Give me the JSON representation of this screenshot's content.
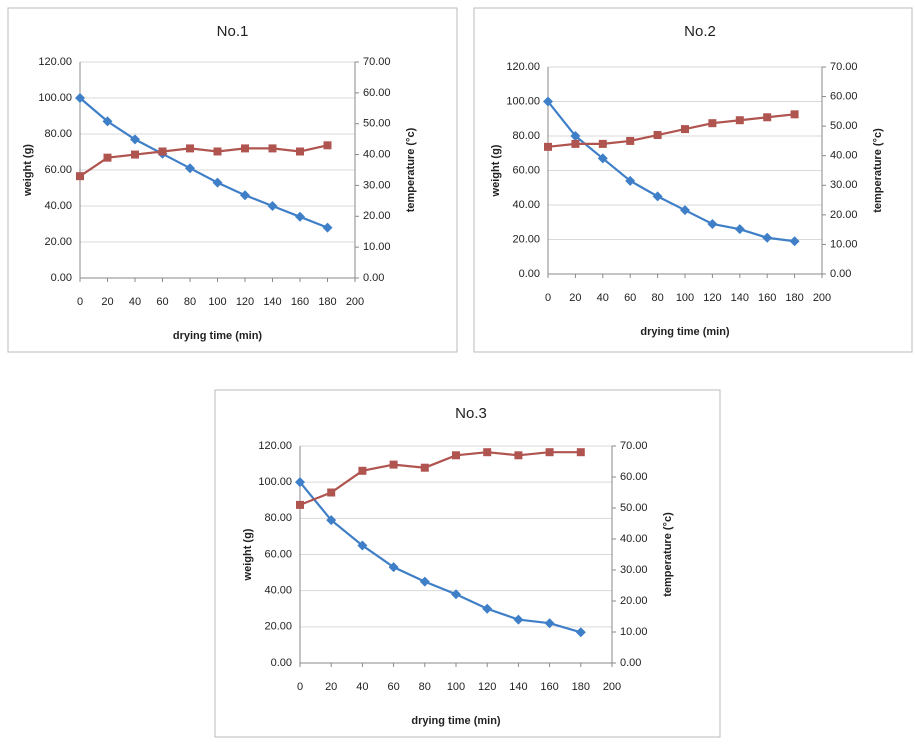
{
  "chart_data": [
    {
      "type": "line",
      "title": "No.1",
      "xlabel": "drying time (min)",
      "ylabel": "weight (g)",
      "y2label": "temperature (°c)",
      "x": [
        0,
        20,
        40,
        60,
        80,
        100,
        120,
        140,
        160,
        180
      ],
      "series": [
        {
          "color": "#3f7fc8",
          "marker": "diamond",
          "values": [
            100,
            87,
            77,
            69,
            61,
            53,
            46,
            40,
            34,
            28
          ]
        },
        {
          "color": "#b05450",
          "marker": "square",
          "axis": "y2",
          "values": [
            33,
            39,
            40,
            41,
            42,
            41,
            42,
            42,
            41,
            43
          ]
        }
      ],
      "xlim": [
        0,
        200
      ],
      "xticks": [
        0,
        20,
        40,
        60,
        80,
        100,
        120,
        140,
        160,
        180,
        200
      ],
      "ylim": [
        0,
        120
      ],
      "yticks": [
        {
          "value": 0,
          "label": "0.00"
        },
        {
          "value": 20,
          "label": "20.00"
        },
        {
          "value": 40,
          "label": "40.00"
        },
        {
          "value": 60,
          "label": "60.00"
        },
        {
          "value": 80,
          "label": "80.00"
        },
        {
          "value": 100,
          "label": "100.00"
        },
        {
          "value": 120,
          "label": "120.00"
        }
      ],
      "y2lim": [
        0,
        70
      ],
      "y2ticks": [
        {
          "value": 0,
          "label": "0.00"
        },
        {
          "value": 10,
          "label": "10.00"
        },
        {
          "value": 20,
          "label": "20.00"
        },
        {
          "value": 30,
          "label": "30.00"
        },
        {
          "value": 40,
          "label": "40.00"
        },
        {
          "value": 50,
          "label": "50.00"
        },
        {
          "value": 60,
          "label": "60.00"
        },
        {
          "value": 70,
          "label": "70.00"
        }
      ],
      "grid": true
    },
    {
      "type": "line",
      "title": "No.2",
      "xlabel": "drying time (min)",
      "ylabel": "weight (g)",
      "y2label": "temperature (°c)",
      "x": [
        0,
        20,
        40,
        60,
        80,
        100,
        120,
        140,
        160,
        180
      ],
      "series": [
        {
          "color": "#3f7fc8",
          "marker": "diamond",
          "values": [
            100,
            80,
            67,
            54,
            45,
            37,
            29,
            26,
            21,
            19
          ]
        },
        {
          "color": "#b05450",
          "marker": "square",
          "axis": "y2",
          "values": [
            43,
            44,
            44,
            45,
            47,
            49,
            51,
            52,
            53,
            54
          ]
        }
      ],
      "xlim": [
        0,
        200
      ],
      "xticks": [
        0,
        20,
        40,
        60,
        80,
        100,
        120,
        140,
        160,
        180,
        200
      ],
      "ylim": [
        0,
        120
      ],
      "yticks": [
        {
          "value": 0,
          "label": "0.00"
        },
        {
          "value": 20,
          "label": "20.00"
        },
        {
          "value": 40,
          "label": "40.00"
        },
        {
          "value": 60,
          "label": "60.00"
        },
        {
          "value": 80,
          "label": "80.00"
        },
        {
          "value": 100,
          "label": "100.00"
        },
        {
          "value": 120,
          "label": "120.00"
        }
      ],
      "y2lim": [
        0,
        70
      ],
      "y2ticks": [
        {
          "value": 0,
          "label": "0.00"
        },
        {
          "value": 10,
          "label": "10.00"
        },
        {
          "value": 20,
          "label": "20.00"
        },
        {
          "value": 30,
          "label": "30.00"
        },
        {
          "value": 40,
          "label": "40.00"
        },
        {
          "value": 50,
          "label": "50.00"
        },
        {
          "value": 60,
          "label": "60.00"
        },
        {
          "value": 70,
          "label": "70.00"
        }
      ],
      "grid": true
    },
    {
      "type": "line",
      "title": "No.3",
      "xlabel": "drying time (min)",
      "ylabel": "weight (g)",
      "y2label": "temperature (°c)",
      "x": [
        0,
        20,
        40,
        60,
        80,
        100,
        120,
        140,
        160,
        180
      ],
      "series": [
        {
          "color": "#3f7fc8",
          "marker": "diamond",
          "values": [
            100,
            79,
            65,
            53,
            45,
            38,
            30,
            24,
            22,
            17
          ]
        },
        {
          "color": "#b05450",
          "marker": "square",
          "axis": "y2",
          "values": [
            51,
            55,
            62,
            64,
            63,
            67,
            68,
            67,
            68,
            68
          ]
        }
      ],
      "xlim": [
        0,
        200
      ],
      "xticks": [
        0,
        20,
        40,
        60,
        80,
        100,
        120,
        140,
        160,
        180,
        200
      ],
      "ylim": [
        0,
        120
      ],
      "yticks": [
        {
          "value": 0,
          "label": "0.00"
        },
        {
          "value": 20,
          "label": "20.00"
        },
        {
          "value": 40,
          "label": "40.00"
        },
        {
          "value": 60,
          "label": "60.00"
        },
        {
          "value": 80,
          "label": "80.00"
        },
        {
          "value": 100,
          "label": "100.00"
        },
        {
          "value": 120,
          "label": "120.00"
        }
      ],
      "y2lim": [
        0,
        70
      ],
      "y2ticks": [
        {
          "value": 0,
          "label": "0.00"
        },
        {
          "value": 10,
          "label": "10.00"
        },
        {
          "value": 20,
          "label": "20.00"
        },
        {
          "value": 30,
          "label": "30.00"
        },
        {
          "value": 40,
          "label": "40.00"
        },
        {
          "value": 50,
          "label": "50.00"
        },
        {
          "value": 60,
          "label": "60.00"
        },
        {
          "value": 70,
          "label": "70.00"
        }
      ],
      "grid": true
    }
  ]
}
